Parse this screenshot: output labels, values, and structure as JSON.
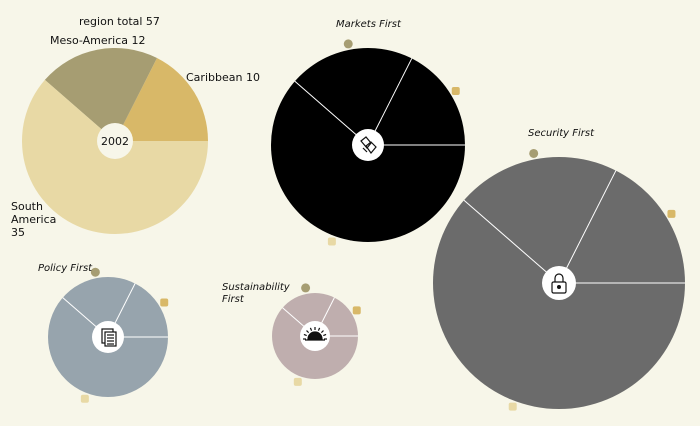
{
  "chart_data": {
    "type": "pie",
    "palette": {
      "caribbean": "#d8b868",
      "meso_america": "#a69d72",
      "south_america": "#e8d9a5",
      "background": "#f7f6e9"
    },
    "base_pie": {
      "center_label": "2002",
      "total_label": "region total 57",
      "total": 57,
      "slices": [
        {
          "key": "caribbean",
          "label": "Caribbean 10",
          "value": 10
        },
        {
          "key": "meso_america",
          "label": "Meso-America 12",
          "value": 12
        },
        {
          "key": "south_america",
          "label_lines": [
            "South",
            "America",
            "35"
          ],
          "value": 35
        }
      ]
    },
    "scenarios": [
      {
        "key": "markets",
        "title_lines": [
          "Markets First"
        ],
        "fill": "#000000",
        "icon": "hands-icon"
      },
      {
        "key": "security",
        "title_lines": [
          "Security First"
        ],
        "fill": "#6b6b6b",
        "icon": "padlock-icon"
      },
      {
        "key": "policy",
        "title_lines": [
          "Policy First"
        ],
        "fill": "#97a4ad",
        "icon": "documents-icon"
      },
      {
        "key": "sustainability",
        "title_lines": [
          "Sustainability",
          "First"
        ],
        "fill": "#bfaeae",
        "icon": "sun-icon"
      }
    ]
  }
}
